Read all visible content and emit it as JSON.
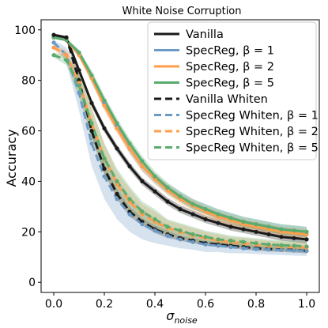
{
  "chart_data": {
    "type": "line",
    "title": "White Noise Corruption",
    "xlabel": "σ_noise",
    "ylabel": "Accuracy",
    "xlim": [
      -0.05,
      1.05
    ],
    "ylim": [
      -4,
      104
    ],
    "xticks": [
      "0.0",
      "0.2",
      "0.4",
      "0.6",
      "0.8",
      "1.0"
    ],
    "yticks": [
      "0",
      "20",
      "40",
      "60",
      "80",
      "100"
    ],
    "grid": false,
    "legend_position": "top-right",
    "x": [
      0.0,
      0.05,
      0.1,
      0.15,
      0.2,
      0.25,
      0.3,
      0.35,
      0.4,
      0.45,
      0.5,
      0.55,
      0.6,
      0.65,
      0.7,
      0.75,
      0.8,
      0.85,
      0.9,
      0.95,
      1.0
    ],
    "series": [
      {
        "name": "Vanilla",
        "color": "#1a1a1a",
        "dashed": false,
        "values": [
          98,
          97,
          84,
          71,
          61,
          53,
          46,
          40,
          36,
          32,
          29,
          27,
          25,
          23.5,
          22,
          21,
          20,
          19,
          18,
          17.5,
          17
        ],
        "band": [
          0.5,
          0.5,
          1,
          1.5,
          1.5,
          1.5,
          1.5,
          1.5,
          1.5,
          1.5,
          1.5,
          1.5,
          1.5,
          1.5,
          1.5,
          1.5,
          1.5,
          1.5,
          1.5,
          1.5,
          1.5
        ]
      },
      {
        "name": "SpecReg, β = 1",
        "color": "#6b9ac4",
        "dashed": false,
        "values": [
          97,
          96,
          91,
          81,
          71,
          62,
          53,
          46,
          41,
          37,
          34,
          31,
          29,
          27,
          25.5,
          24,
          23,
          22,
          21,
          20.5,
          20
        ],
        "band": [
          0.5,
          0.5,
          1,
          2,
          2,
          2,
          2,
          2,
          2,
          2,
          2,
          2,
          2,
          2,
          2,
          2,
          2,
          2,
          2,
          2,
          2
        ]
      },
      {
        "name": "SpecReg, β = 2",
        "color": "#ff9e4a",
        "dashed": false,
        "values": [
          97,
          96,
          90,
          81,
          70,
          61,
          53,
          46,
          41,
          36.5,
          33,
          30.5,
          28,
          26,
          24.5,
          23,
          22,
          21,
          20,
          19.5,
          19
        ],
        "band": [
          0.5,
          0.5,
          1,
          2,
          2,
          2,
          2,
          2,
          2,
          2,
          2,
          2,
          2,
          2,
          2,
          2,
          2,
          2,
          2,
          2,
          2
        ]
      },
      {
        "name": "SpecReg, β = 5",
        "color": "#5aab6e",
        "dashed": false,
        "values": [
          97,
          96,
          91,
          82,
          72,
          63,
          55,
          48,
          42,
          37.5,
          34,
          31,
          29,
          27,
          25.5,
          24,
          23,
          22,
          21,
          20.5,
          20
        ],
        "band": [
          0.5,
          0.5,
          1,
          2,
          2,
          2,
          2,
          2,
          2,
          2,
          2,
          2,
          2,
          2,
          2,
          2,
          2,
          2,
          2,
          2,
          2
        ]
      },
      {
        "name": "Vanilla Whiten",
        "color": "#1a1a1a",
        "dashed": true,
        "values": [
          98,
          97,
          80,
          60,
          45,
          35,
          28,
          24,
          21,
          19,
          17.5,
          16.5,
          15.5,
          15,
          14.5,
          14,
          13.5,
          13.2,
          13,
          12.8,
          12.5
        ],
        "band": [
          0.5,
          0.5,
          2,
          2,
          2,
          2,
          2,
          1.5,
          1.5,
          1.5,
          1,
          1,
          1,
          1,
          1,
          1,
          1,
          1,
          1,
          1,
          1
        ]
      },
      {
        "name": "SpecReg  Whiten, β = 1",
        "color": "#6b9ac4",
        "dashed": true,
        "values": [
          95,
          90,
          75,
          55,
          42,
          33,
          27,
          23,
          20.5,
          18.5,
          17,
          16,
          15,
          14.5,
          14,
          13.5,
          13.2,
          13,
          12.8,
          12.6,
          12.5
        ],
        "band": [
          1,
          3,
          7,
          9,
          9,
          8,
          7,
          6,
          5,
          4,
          3.5,
          3,
          3,
          2.5,
          2.5,
          2,
          2,
          2,
          2,
          2,
          2
        ]
      },
      {
        "name": "SpecReg  Whiten, β = 2",
        "color": "#ff9e4a",
        "dashed": true,
        "values": [
          93,
          90,
          79,
          63,
          49,
          39,
          32,
          27,
          24,
          21.5,
          20,
          18.5,
          17.5,
          16.5,
          16,
          15.5,
          15,
          14.5,
          14.2,
          14,
          13.8
        ],
        "band": [
          1,
          2,
          5,
          6,
          6,
          5,
          5,
          4,
          4,
          3,
          3,
          3,
          2.5,
          2.5,
          2,
          2,
          2,
          2,
          2,
          2,
          2
        ]
      },
      {
        "name": "SpecReg  Whiten, β = 5",
        "color": "#5aab6e",
        "dashed": true,
        "values": [
          90,
          88,
          78,
          63,
          49,
          40,
          33,
          28,
          25,
          22,
          20.5,
          19,
          18,
          17,
          16.5,
          16,
          15.5,
          15,
          14.7,
          14.5,
          14.2
        ],
        "band": [
          1,
          2,
          5,
          6,
          6,
          5,
          5,
          4,
          4,
          3,
          3,
          3,
          2.5,
          2.5,
          2,
          2,
          2,
          2,
          2,
          2,
          2
        ]
      }
    ]
  }
}
